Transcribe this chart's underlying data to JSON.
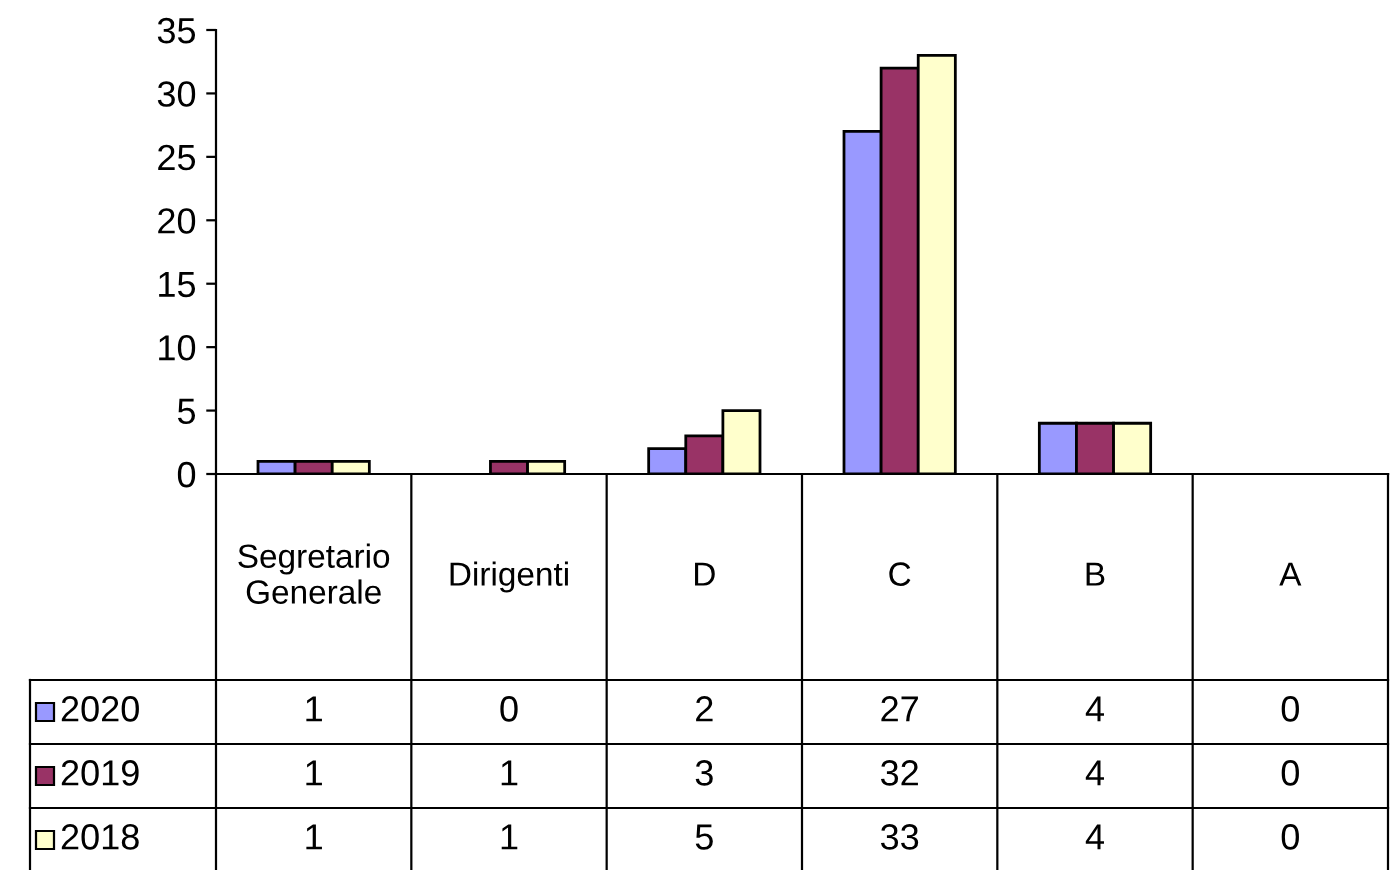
{
  "chart_data": {
    "type": "bar",
    "categories": [
      "Segretario Generale",
      "Dirigenti",
      "D",
      "C",
      "B",
      "A"
    ],
    "series": [
      {
        "name": "2020",
        "color": "#9999ff",
        "values": [
          1,
          0,
          2,
          27,
          4,
          0
        ]
      },
      {
        "name": "2019",
        "color": "#993366",
        "values": [
          1,
          1,
          3,
          32,
          4,
          0
        ]
      },
      {
        "name": "2018",
        "color": "#ffffcc",
        "values": [
          1,
          1,
          5,
          33,
          4,
          0
        ]
      }
    ],
    "ylim": [
      0,
      35
    ],
    "yticks": [
      0,
      5,
      10,
      15,
      20,
      25,
      30,
      35
    ],
    "grid": false,
    "legend": "bottom left",
    "data_labels": true
  }
}
